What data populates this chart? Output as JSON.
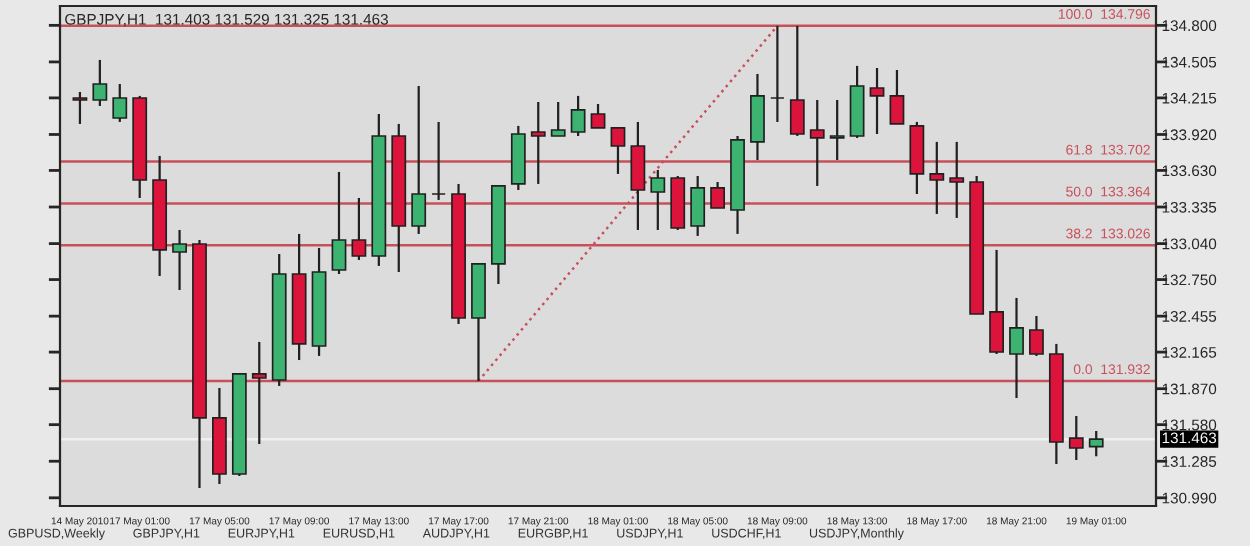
{
  "chart_data": {
    "type": "candlestick",
    "title": "GBPJPY,H1  131.403 131.529 131.325 131.463",
    "categories": [
      "14 May 2010",
      null,
      null,
      "17 May 01:00",
      null,
      null,
      null,
      "17 May 05:00",
      null,
      null,
      null,
      "17 May 09:00",
      null,
      null,
      null,
      "17 May 13:00",
      null,
      null,
      null,
      "17 May 17:00",
      null,
      null,
      null,
      "17 May 21:00",
      null,
      null,
      null,
      "18 May 01:00",
      null,
      null,
      null,
      "18 May 05:00",
      null,
      null,
      null,
      "18 May 09:00",
      null,
      null,
      null,
      "18 May 13:00",
      null,
      null,
      null,
      "18 May 17:00",
      null,
      null,
      null,
      "18 May 21:00",
      null,
      null,
      null,
      "19 May 01:00"
    ],
    "ohlc": [
      [
        134.214,
        134.263,
        134.005,
        134.198
      ],
      [
        134.198,
        134.521,
        134.15,
        134.327
      ],
      [
        134.053,
        134.327,
        134.021,
        134.214
      ],
      [
        134.214,
        134.231,
        133.408,
        133.553
      ],
      [
        133.553,
        133.747,
        132.779,
        132.989
      ],
      [
        132.972,
        133.15,
        132.666,
        133.037
      ],
      [
        133.037,
        133.069,
        131.069,
        131.634
      ],
      [
        131.634,
        131.876,
        131.101,
        131.182
      ],
      [
        131.182,
        131.989,
        131.166,
        131.989
      ],
      [
        131.989,
        132.247,
        131.424,
        131.956
      ],
      [
        131.94,
        132.956,
        131.892,
        132.795
      ],
      [
        132.795,
        133.118,
        132.101,
        132.231
      ],
      [
        132.214,
        133.005,
        132.134,
        132.811
      ],
      [
        132.827,
        133.618,
        132.795,
        133.069
      ],
      [
        133.069,
        133.408,
        132.908,
        132.94
      ],
      [
        132.94,
        134.085,
        132.86,
        133.908
      ],
      [
        133.908,
        134.005,
        132.811,
        133.182
      ],
      [
        133.182,
        134.311,
        133.118,
        133.44
      ],
      [
        133.44,
        134.021,
        133.392,
        133.44
      ],
      [
        133.44,
        133.521,
        132.392,
        132.44
      ],
      [
        132.44,
        132.876,
        131.932,
        132.876
      ],
      [
        132.876,
        133.505,
        132.714,
        133.505
      ],
      [
        133.521,
        133.989,
        133.472,
        133.924
      ],
      [
        133.94,
        134.182,
        133.521,
        133.908
      ],
      [
        133.908,
        134.182,
        133.908,
        133.956
      ],
      [
        133.94,
        134.231,
        133.908,
        134.118
      ],
      [
        134.085,
        134.166,
        133.973,
        133.973
      ],
      [
        133.973,
        133.973,
        133.602,
        133.827
      ],
      [
        133.827,
        134.021,
        133.15,
        133.472
      ],
      [
        133.456,
        133.634,
        133.15,
        133.569
      ],
      [
        133.569,
        133.585,
        133.15,
        133.166
      ],
      [
        133.182,
        133.585,
        133.102,
        133.489
      ],
      [
        133.489,
        133.537,
        133.327,
        133.327
      ],
      [
        133.311,
        133.908,
        133.118,
        133.876
      ],
      [
        133.86,
        134.408,
        133.714,
        134.231
      ],
      [
        134.214,
        134.796,
        134.021,
        134.214
      ],
      [
        134.198,
        134.796,
        133.908,
        133.924
      ],
      [
        133.956,
        134.198,
        133.505,
        133.892
      ],
      [
        133.892,
        134.198,
        133.714,
        133.908
      ],
      [
        133.908,
        134.473,
        133.892,
        134.311
      ],
      [
        134.295,
        134.456,
        133.924,
        134.231
      ],
      [
        134.231,
        134.44,
        134.005,
        134.005
      ],
      [
        133.989,
        134.021,
        133.44,
        133.602
      ],
      [
        133.602,
        133.86,
        133.279,
        133.553
      ],
      [
        133.569,
        133.86,
        133.247,
        133.537
      ],
      [
        133.537,
        133.585,
        132.472,
        132.472
      ],
      [
        132.489,
        132.989,
        132.15,
        132.166
      ],
      [
        132.15,
        132.602,
        131.795,
        132.36
      ],
      [
        132.343,
        132.456,
        132.134,
        132.15
      ],
      [
        132.15,
        132.231,
        131.263,
        131.44
      ],
      [
        131.472,
        131.65,
        131.295,
        131.392
      ],
      [
        131.403,
        131.529,
        131.325,
        131.463
      ]
    ],
    "series": [
      {
        "type": "line",
        "line_style": "dotted",
        "color": "#c8505a",
        "values": [
          null,
          null,
          null,
          null,
          null,
          null,
          null,
          null,
          null,
          null,
          null,
          null,
          null,
          null,
          null,
          null,
          null,
          null,
          null,
          null,
          131.932,
          null,
          null,
          null,
          null,
          null,
          null,
          null,
          null,
          null,
          null,
          null,
          null,
          null,
          null,
          134.796,
          null,
          null,
          null,
          null,
          null,
          null,
          null,
          null,
          null,
          null,
          null,
          null,
          null,
          null,
          null,
          null
        ]
      }
    ],
    "ylim": [
      130.924,
      134.956
    ],
    "yticks": [
      {
        "value": 134.8,
        "label": "134.800"
      },
      {
        "value": 134.505,
        "label": "134.505"
      },
      {
        "value": 134.215,
        "label": "134.215"
      },
      {
        "value": 133.92,
        "label": "133.920"
      },
      {
        "value": 133.63,
        "label": "133.630"
      },
      {
        "value": 133.335,
        "label": "133.335"
      },
      {
        "value": 133.04,
        "label": "133.040"
      },
      {
        "value": 132.75,
        "label": "132.750"
      },
      {
        "value": 132.455,
        "label": "132.455"
      },
      {
        "value": 132.165,
        "label": "132.165"
      },
      {
        "value": 131.87,
        "label": "131.870"
      },
      {
        "value": 131.58,
        "label": "131.580"
      },
      {
        "value": 131.285,
        "label": "131.285"
      },
      {
        "value": 130.99,
        "label": "130.990"
      }
    ],
    "ref_lines": [
      {
        "axis": "y",
        "value": 134.796,
        "label": "100.0  134.796",
        "color": "#c8505a"
      },
      {
        "axis": "y",
        "value": 133.702,
        "label": "61.8  133.702",
        "color": "#c8505a"
      },
      {
        "axis": "y",
        "value": 133.364,
        "label": "50.0  133.364",
        "color": "#c8505a"
      },
      {
        "axis": "y",
        "value": 133.026,
        "label": "38.2  133.026",
        "color": "#c8505a"
      },
      {
        "axis": "y",
        "value": 131.932,
        "label": "0.0  131.932",
        "color": "#c8505a"
      },
      {
        "axis": "y",
        "value": 131.463,
        "label": "131.463",
        "color": "#f0f0f0"
      }
    ],
    "annotations": [
      "GBPUSD,Weekly",
      "GBPJPY,H1",
      "EURJPY,H1",
      "EURUSD,H1",
      "AUDJPY,H1",
      "EURGBP,H1",
      "USDJPY,H1",
      "USDCHF,H1",
      "USDJPY,Monthly"
    ],
    "grid": false,
    "legend": false
  }
}
